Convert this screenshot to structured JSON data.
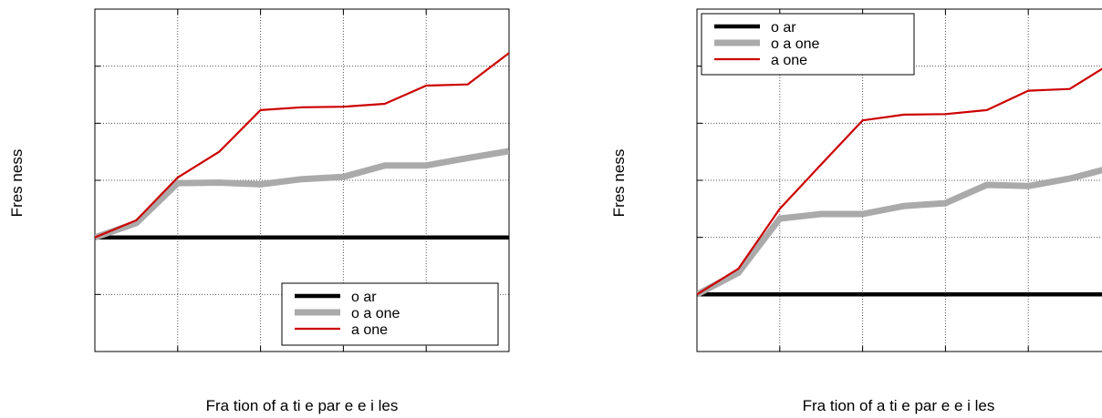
{
  "chart_data": [
    {
      "type": "line",
      "xlabel": "Fra tion of a ti e par e e i les",
      "ylabel": "Fres ness",
      "grid": true,
      "legend": "bottom-right",
      "x": [
        0,
        1,
        2,
        3,
        4,
        5,
        6,
        7,
        8,
        9,
        10
      ],
      "xlim": [
        0,
        10
      ],
      "ylim": [
        0,
        6
      ],
      "series": [
        {
          "name": "o ar",
          "color": "#000000",
          "values": [
            2,
            2,
            2,
            2,
            2,
            2,
            2,
            2,
            2,
            2,
            2
          ]
        },
        {
          "name": "o a one",
          "color": "#aaaaaa",
          "values": [
            2,
            2.25,
            2.95,
            2.96,
            2.93,
            3.02,
            3.06,
            3.26,
            3.26,
            3.39,
            3.51
          ]
        },
        {
          "name": "a one",
          "color": "#cc0000",
          "values": [
            2,
            2.3,
            3.05,
            3.5,
            4.23,
            4.28,
            4.29,
            4.34,
            4.66,
            4.68,
            5.23
          ]
        }
      ]
    },
    {
      "type": "line",
      "xlabel": "Fra tion of a ti e par e e i les",
      "ylabel": "Fres ness",
      "grid": true,
      "legend": "top-left",
      "x": [
        0,
        1,
        2,
        3,
        4,
        5,
        6,
        7,
        8,
        9,
        10
      ],
      "xlim": [
        0,
        10
      ],
      "ylim": [
        0,
        6
      ],
      "series": [
        {
          "name": "o ar",
          "color": "#000000",
          "values": [
            1,
            1,
            1,
            1,
            1,
            1,
            1,
            1,
            1,
            1,
            1
          ]
        },
        {
          "name": "o a one",
          "color": "#aaaaaa",
          "values": [
            1,
            1.38,
            2.33,
            2.41,
            2.41,
            2.55,
            2.6,
            2.92,
            2.9,
            3.03,
            3.22
          ]
        },
        {
          "name": "a one",
          "color": "#cc0000",
          "values": [
            1,
            1.45,
            2.5,
            3.28,
            4.05,
            4.15,
            4.16,
            4.23,
            4.57,
            4.6,
            5.05
          ]
        }
      ]
    }
  ]
}
